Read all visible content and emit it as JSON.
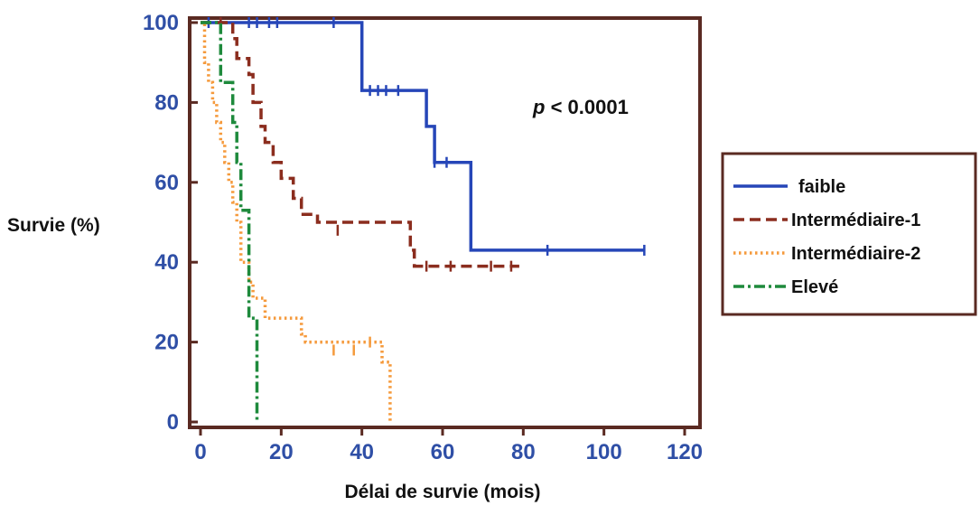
{
  "chart_data": {
    "type": "line",
    "xlabel": "Délai de survie (mois)",
    "ylabel": "Survie (%)",
    "xlim": [
      0,
      120
    ],
    "ylim": [
      0,
      100
    ],
    "xticks": [
      "0",
      "20",
      "40",
      "60",
      "80",
      "100",
      "120"
    ],
    "yticks": [
      "0",
      "20",
      "40",
      "60",
      "80",
      "100"
    ],
    "annotation": {
      "italic": "p",
      "text": " < 0.0001"
    },
    "legend_position": "right",
    "series": [
      {
        "name": "faible",
        "color": "#2646b8",
        "dash": "solid",
        "x": [
          0,
          40,
          40,
          56,
          56,
          58,
          58,
          60,
          60,
          67,
          67,
          110
        ],
        "y": [
          100,
          100,
          83,
          83,
          74,
          74,
          65,
          65,
          65,
          65,
          43,
          43
        ],
        "censored": [
          [
            2,
            100
          ],
          [
            5,
            100
          ],
          [
            12,
            100
          ],
          [
            14,
            100
          ],
          [
            17,
            100
          ],
          [
            19,
            100
          ],
          [
            33,
            100
          ],
          [
            42,
            83
          ],
          [
            44,
            83
          ],
          [
            46,
            83
          ],
          [
            49,
            83
          ],
          [
            58,
            65
          ],
          [
            61,
            65
          ],
          [
            86,
            43
          ],
          [
            110,
            43
          ]
        ]
      },
      {
        "name": "Intermédiaire-1",
        "color": "#8b2d1e",
        "dash": "long",
        "x": [
          0,
          8,
          8,
          9,
          9,
          12,
          12,
          13,
          13,
          15,
          15,
          16,
          16,
          18,
          18,
          20,
          20,
          23,
          23,
          25,
          25,
          29,
          29,
          33,
          33,
          48,
          48,
          52,
          52,
          53,
          53,
          79
        ],
        "y": [
          100,
          100,
          96,
          96,
          91,
          91,
          87,
          87,
          80,
          80,
          74,
          74,
          70,
          70,
          65,
          65,
          61,
          61,
          56,
          56,
          52,
          52,
          50,
          50,
          50,
          50,
          50,
          50,
          43,
          43,
          39,
          39
        ],
        "censored": [
          [
            5,
            100
          ],
          [
            34,
            48
          ],
          [
            56,
            39
          ],
          [
            62,
            39
          ],
          [
            72,
            39
          ],
          [
            77,
            39
          ]
        ]
      },
      {
        "name": "Intermédiaire-2",
        "color": "#f59a3c",
        "dash": "dot",
        "x": [
          0,
          1,
          1,
          2,
          2,
          3,
          3,
          4,
          4,
          5,
          5,
          6,
          6,
          7,
          7,
          8,
          8,
          9,
          9,
          10,
          10,
          12,
          12,
          13,
          13,
          16,
          16,
          25,
          25,
          26,
          26,
          45,
          45,
          47,
          47
        ],
        "y": [
          100,
          100,
          90,
          90,
          85,
          85,
          80,
          80,
          75,
          75,
          70,
          70,
          65,
          65,
          60,
          60,
          55,
          55,
          50,
          50,
          40,
          40,
          35,
          35,
          31,
          31,
          26,
          26,
          22,
          22,
          20,
          20,
          15,
          15,
          0
        ],
        "censored": [
          [
            33,
            18
          ],
          [
            38,
            18
          ],
          [
            42,
            20
          ]
        ]
      },
      {
        "name": "Elevé",
        "color": "#1e8a3c",
        "dash": "dashdot",
        "x": [
          0,
          5,
          5,
          8,
          8,
          9,
          9,
          10,
          10,
          12,
          12,
          14,
          14
        ],
        "y": [
          100,
          100,
          85,
          85,
          75,
          75,
          65,
          65,
          53,
          53,
          26,
          26,
          0
        ],
        "censored": []
      }
    ]
  }
}
